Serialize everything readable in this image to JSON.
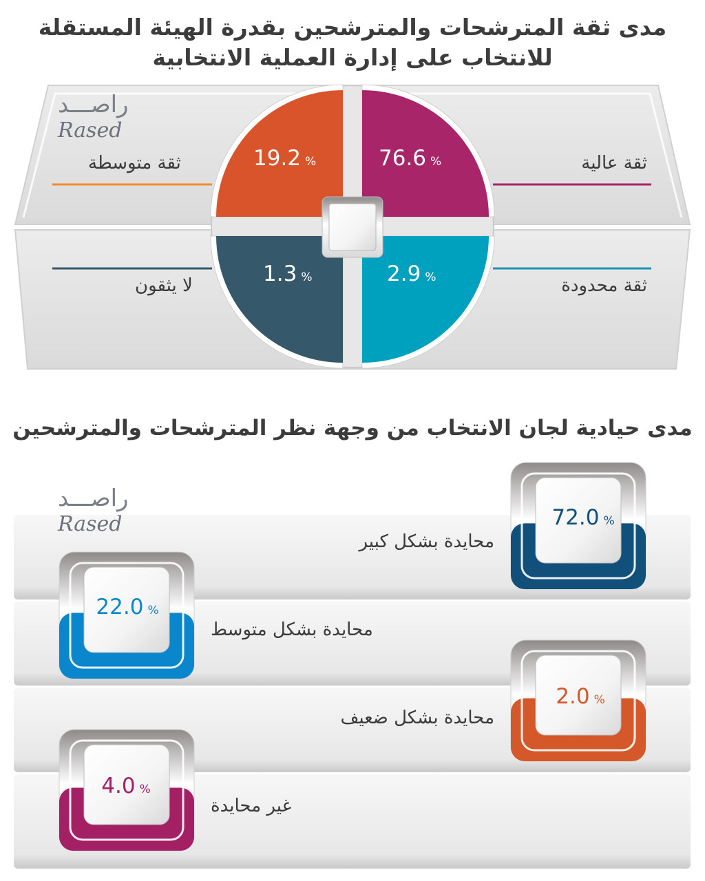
{
  "section1": {
    "title": "مدى ثقة المترشحات والمترشحين بقدرة الهيئة المستقلة للانتخاب على إدارة العملية الانتخابية"
  },
  "section2": {
    "title": "مدى حيادية لجان الانتخاب من وجهة نظر المترشحات والمترشحين"
  },
  "logo": {
    "arabic": "راصـــد",
    "english": "Rased"
  },
  "percent_sign": "%",
  "chart_data": [
    {
      "type": "pie",
      "title": "مدى ثقة المترشحات والمترشحين بقدرة الهيئة المستقلة للانتخاب على إدارة العملية الانتخابية",
      "categories": [
        "ثقة عالية",
        "ثقة متوسطة",
        "ثقة محدودة",
        "لا يثقون"
      ],
      "values": [
        76.6,
        19.2,
        2.9,
        1.3
      ],
      "labels": [
        "76.6",
        "19.2",
        "2.9",
        "1.3"
      ],
      "colors": [
        "#a8256a",
        "#d9542a",
        "#00a0bf",
        "#35596b"
      ],
      "unit": "%"
    },
    {
      "type": "bar",
      "title": "مدى حيادية لجان الانتخاب من وجهة نظر المترشحات والمترشحين",
      "categories": [
        "محايدة بشكل كبير",
        "محايدة بشكل متوسط",
        "محايدة بشكل ضعيف",
        "غير محايدة"
      ],
      "values": [
        72.0,
        22.0,
        2.0,
        4.0
      ],
      "labels": [
        "72.0",
        "22.0",
        "2.0",
        "4.0"
      ],
      "colors": [
        "#12507c",
        "#0a86cc",
        "#d4582a",
        "#a32065"
      ],
      "unit": "%"
    }
  ]
}
